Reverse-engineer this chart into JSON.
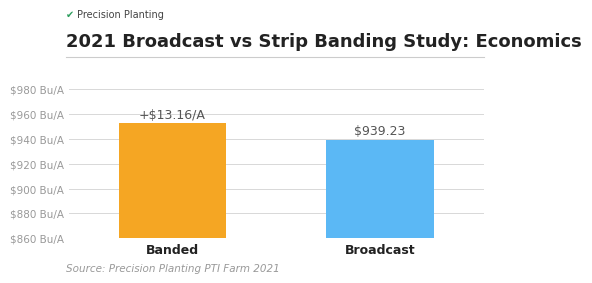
{
  "title": "2021 Broadcast vs Strip Banding Study: Economics",
  "categories": [
    "Banded",
    "Broadcast"
  ],
  "values": [
    952.39,
    939.23
  ],
  "bar_colors": [
    "#F5A623",
    "#5BB8F5"
  ],
  "ymin": 860,
  "ymax": 980,
  "ytick_step": 20,
  "bar_labels": [
    "+$13.16/A",
    "$939.23"
  ],
  "source_text": "Source: Precision Planting PTI Farm 2021",
  "logo_text": "Precision Planting",
  "logo_symbol": "✔",
  "logo_color": "#2e9e5e",
  "background_color": "#ffffff",
  "title_fontsize": 13,
  "bar_label_fontsize": 9,
  "tick_fontsize": 7.5,
  "xtick_fontsize": 9,
  "source_fontsize": 7.5,
  "logo_fontsize": 7,
  "grid_color": "#d8d8d8",
  "bar_width": 0.52,
  "x_positions": [
    0,
    1
  ],
  "title_color": "#222222",
  "tick_color": "#999999",
  "xtick_color": "#222222",
  "separator_color": "#cccccc"
}
